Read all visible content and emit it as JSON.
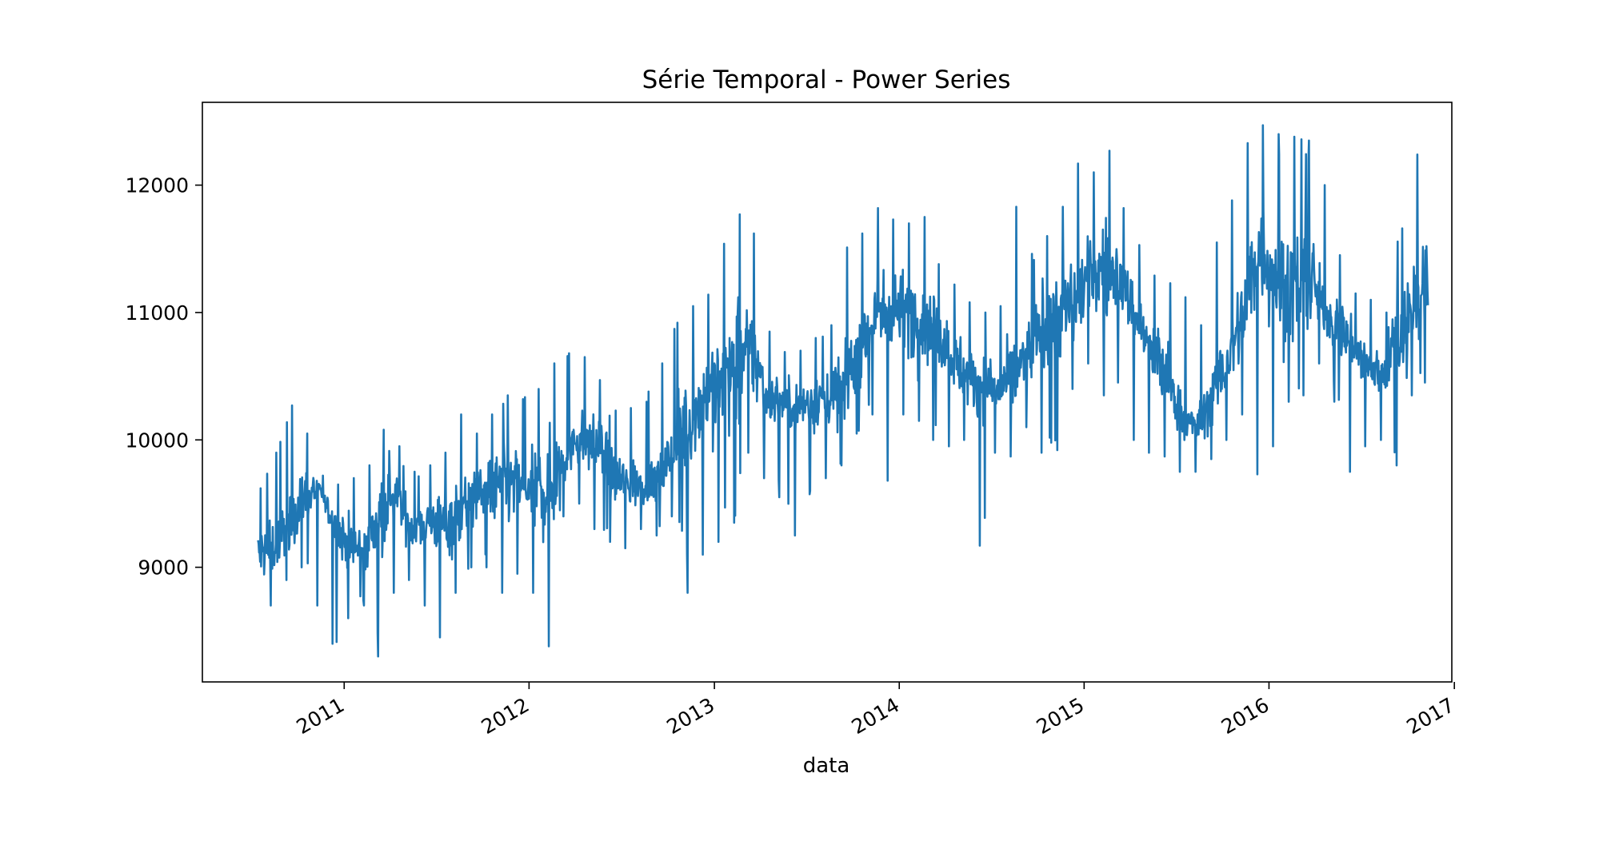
{
  "chart_data": {
    "type": "line",
    "title": "Série Temporal - Power Series",
    "xlabel": "data",
    "ylabel": "",
    "x_axis": {
      "kind": "date",
      "range": [
        "2010-03-27",
        "2016-12-27"
      ],
      "ticks": [
        "2011-01-01",
        "2012-01-01",
        "2013-01-01",
        "2014-01-01",
        "2015-01-01",
        "2016-01-01",
        "2017-01-01"
      ],
      "tick_labels": [
        "2011",
        "2012",
        "2013",
        "2014",
        "2015",
        "2016",
        "2017"
      ],
      "tick_label_rotation": "30 degrees"
    },
    "y_axis": {
      "range": [
        8100,
        12650
      ],
      "ticks": [
        9000,
        10000,
        11000,
        12000
      ],
      "tick_labels": [
        "9000",
        "10000",
        "11000",
        "12000"
      ]
    },
    "grid": false,
    "legend": "none",
    "colors": {
      "series": "#1f77b4",
      "axes": "#000000",
      "background": "#ffffff"
    },
    "series": [
      {
        "x": [
          "2010-07-15",
          "2010-08-15",
          "2010-09-15",
          "2010-10-15",
          "2010-11-15",
          "2010-12-15",
          "2011-01-15",
          "2011-02-15",
          "2011-03-15",
          "2011-04-15",
          "2011-05-15",
          "2011-06-15",
          "2011-07-15",
          "2011-08-15",
          "2011-09-15",
          "2011-10-15",
          "2011-11-15",
          "2011-12-15",
          "2012-01-15",
          "2012-02-15",
          "2012-03-15",
          "2012-04-15",
          "2012-05-15",
          "2012-06-15",
          "2012-07-15",
          "2012-08-15",
          "2012-09-15",
          "2012-10-15",
          "2012-11-15",
          "2012-12-15",
          "2013-01-15",
          "2013-02-15",
          "2013-03-15",
          "2013-04-15",
          "2013-05-15",
          "2013-06-15",
          "2013-07-15",
          "2013-08-15",
          "2013-09-15",
          "2013-10-15",
          "2013-11-15",
          "2013-12-15",
          "2014-01-15",
          "2014-02-15",
          "2014-03-15",
          "2014-04-15",
          "2014-05-15",
          "2014-06-15",
          "2014-07-15",
          "2014-08-15",
          "2014-09-15",
          "2014-10-15",
          "2014-11-15",
          "2014-12-15",
          "2015-01-15",
          "2015-02-15",
          "2015-03-15",
          "2015-04-15",
          "2015-05-15",
          "2015-06-15",
          "2015-07-15",
          "2015-08-15",
          "2015-09-15",
          "2015-10-15",
          "2015-11-15",
          "2015-12-15",
          "2016-01-15",
          "2016-02-15",
          "2016-03-15",
          "2016-04-15",
          "2016-05-15",
          "2016-06-15",
          "2016-07-15",
          "2016-08-15",
          "2016-09-15",
          "2016-10-15",
          "2016-11-10"
        ],
        "y": [
          9100,
          9150,
          9350,
          9550,
          9600,
          9300,
          9150,
          9150,
          9450,
          9550,
          9300,
          9350,
          9350,
          9400,
          9550,
          9600,
          9650,
          9650,
          9550,
          9650,
          9900,
          10000,
          9950,
          9700,
          9650,
          9650,
          9700,
          9950,
          10150,
          10350,
          10450,
          10600,
          10700,
          10350,
          10300,
          10250,
          10300,
          10350,
          10400,
          10750,
          10950,
          11050,
          11000,
          10950,
          10850,
          10650,
          10500,
          10450,
          10400,
          10500,
          10700,
          10900,
          11000,
          11100,
          11300,
          11350,
          11250,
          10950,
          10700,
          10500,
          10150,
          10100,
          10400,
          10650,
          11050,
          11500,
          11300,
          11150,
          11350,
          11050,
          10900,
          10750,
          10550,
          10550,
          10800,
          11100,
          11200
        ],
        "range_min": [
          8550,
          8700,
          8900,
          9000,
          8700,
          8400,
          8600,
          8700,
          8300,
          8800,
          8900,
          8700,
          8450,
          8800,
          9000,
          9000,
          8800,
          8950,
          8800,
          8380,
          9400,
          9500,
          9300,
          9200,
          9150,
          9300,
          9250,
          9400,
          8800,
          9100,
          9200,
          9350,
          9900,
          9700,
          9550,
          9250,
          9600,
          9700,
          9800,
          10050,
          10200,
          9680,
          10200,
          10150,
          10000,
          9950,
          10000,
          9170,
          9900,
          9870,
          10100,
          9900,
          9920,
          10400,
          10600,
          10350,
          10450,
          10000,
          9900,
          9870,
          9750,
          9750,
          9850,
          10000,
          10200,
          9730,
          9950,
          10300,
          10350,
          10600,
          10300,
          9750,
          9950,
          10000,
          9800,
          10350,
          10450
        ],
        "range_max": [
          9620,
          9900,
          10270,
          10050,
          9720,
          9650,
          9700,
          9800,
          10080,
          9950,
          9750,
          9800,
          9900,
          10200,
          10050,
          10200,
          10350,
          10320,
          10400,
          10600,
          10680,
          10650,
          10470,
          10230,
          10250,
          10300,
          10600,
          10920,
          11050,
          11140,
          11540,
          11770,
          11620,
          10850,
          10690,
          10700,
          10800,
          10900,
          11510,
          11620,
          11820,
          11730,
          11700,
          11750,
          11380,
          11220,
          11080,
          11000,
          11050,
          11830,
          11460,
          11600,
          11830,
          12170,
          12100,
          12270,
          11820,
          11530,
          11290,
          11230,
          11120,
          10900,
          11550,
          11880,
          12330,
          12470,
          12400,
          12380,
          12350,
          12000,
          11450,
          11150,
          11100,
          11000,
          11660,
          12240,
          12240
        ]
      }
    ]
  }
}
